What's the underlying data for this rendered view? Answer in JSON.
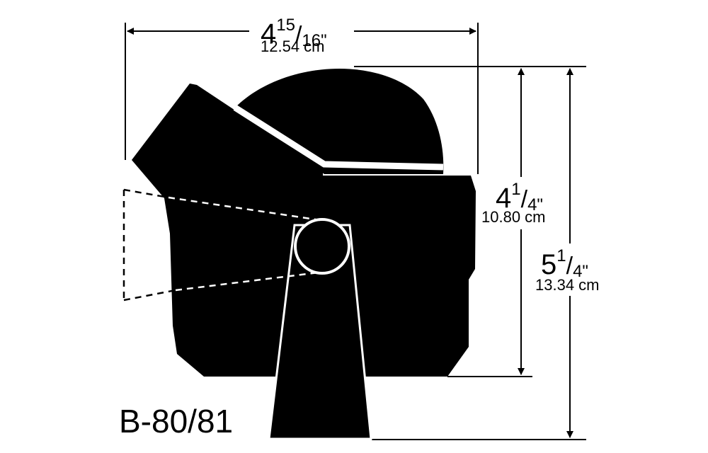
{
  "model": "B-80/81",
  "dimensions": {
    "width": {
      "whole": "4",
      "num": "15",
      "den": "16\"",
      "metric": "12.54 cm"
    },
    "height_body": {
      "whole": "4",
      "num": "1",
      "den": "4\"",
      "metric": "10.80 cm"
    },
    "height_total": {
      "whole": "5",
      "num": "1",
      "den": "4\"",
      "metric": "13.34 cm"
    }
  },
  "colors": {
    "ink": "#000000",
    "paper": "#ffffff"
  }
}
